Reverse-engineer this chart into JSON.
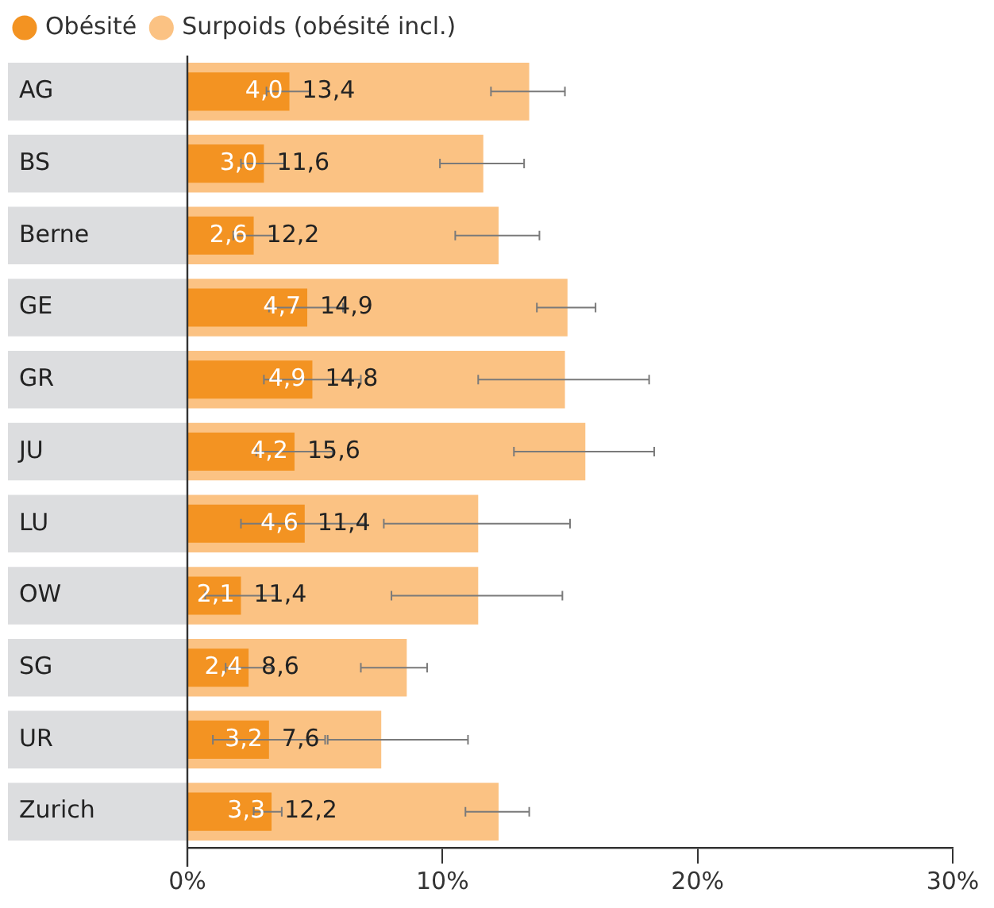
{
  "chart_data": {
    "type": "bar",
    "orientation": "horizontal",
    "categories": [
      "AG",
      "BS",
      "Berne",
      "GE",
      "GR",
      "JU",
      "LU",
      "OW",
      "SG",
      "UR",
      "Zurich"
    ],
    "series": [
      {
        "name": "Obésité",
        "color": "#f39322",
        "values": [
          4.0,
          3.0,
          2.6,
          4.7,
          4.9,
          4.2,
          4.6,
          2.1,
          2.4,
          3.2,
          3.3
        ],
        "value_labels": [
          "4,0",
          "3,0",
          "2,6",
          "4,7",
          "4,9",
          "4,2",
          "4,6",
          "2,1",
          "2,4",
          "3,2",
          "3,3"
        ],
        "errors": [
          [
            3.1,
            4.8
          ],
          [
            2.1,
            3.8
          ],
          [
            1.8,
            3.4
          ],
          [
            3.2,
            6.1
          ],
          [
            3.0,
            6.8
          ],
          [
            2.7,
            5.7
          ],
          [
            2.1,
            7.0
          ],
          [
            0.7,
            3.5
          ],
          [
            1.5,
            3.3
          ],
          [
            1.0,
            5.4
          ],
          [
            2.6,
            3.7
          ]
        ]
      },
      {
        "name": "Surpoids (obésité incl.)",
        "color": "#fbc283",
        "values": [
          13.4,
          11.6,
          12.2,
          14.9,
          14.8,
          15.6,
          11.4,
          11.4,
          8.6,
          7.6,
          12.2
        ],
        "value_labels": [
          "13,4",
          "11,6",
          "12,2",
          "14,9",
          "14,8",
          "15,6",
          "11,4",
          "11,4",
          "8,6",
          "7,6",
          "12,2"
        ],
        "errors": [
          [
            11.9,
            14.8
          ],
          [
            9.9,
            13.2
          ],
          [
            10.5,
            13.8
          ],
          [
            13.7,
            16.0
          ],
          [
            11.4,
            18.1
          ],
          [
            12.8,
            18.3
          ],
          [
            7.7,
            15.0
          ],
          [
            8.0,
            14.7
          ],
          [
            6.8,
            9.4
          ],
          [
            5.5,
            11.0
          ],
          [
            10.9,
            13.4
          ]
        ]
      }
    ],
    "xlim": [
      0,
      30
    ],
    "xticks": [
      {
        "value": 0,
        "label": "0%"
      },
      {
        "value": 10,
        "label": "10%"
      },
      {
        "value": 20,
        "label": "20%"
      },
      {
        "value": 30,
        "label": "30%"
      }
    ],
    "grid": false,
    "legend": "top left",
    "marker": "circle"
  }
}
